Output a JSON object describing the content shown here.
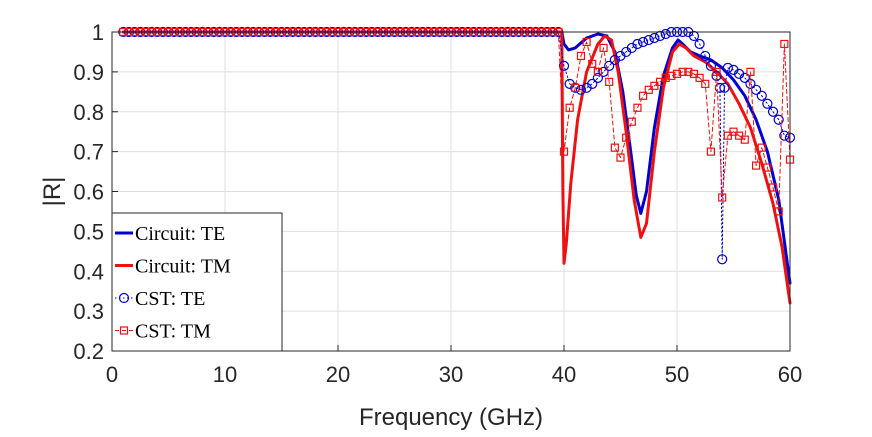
{
  "chart_data": {
    "type": "line",
    "title": "",
    "xlabel": "Frequency (GHz)",
    "ylabel": "|R|",
    "xlim": [
      0,
      60
    ],
    "ylim": [
      0.2,
      1.0
    ],
    "xticks": [
      0,
      10,
      20,
      30,
      40,
      50,
      60
    ],
    "yticks": [
      0.2,
      0.3,
      0.4,
      0.5,
      0.6,
      0.7,
      0.8,
      0.9,
      1
    ],
    "grid": true,
    "legend_position": "bottom-left",
    "colors": {
      "blue": "#0000cc",
      "red": "#ee1111"
    },
    "series": [
      {
        "name": "Circuit: TE",
        "style": "solid",
        "color": "#0000cc",
        "points": [
          [
            1,
            1.0
          ],
          [
            39.8,
            1.0
          ],
          [
            40.0,
            0.97
          ],
          [
            40.4,
            0.955
          ],
          [
            41.0,
            0.96
          ],
          [
            42.0,
            0.985
          ],
          [
            43.0,
            0.995
          ],
          [
            43.8,
            0.99
          ],
          [
            44.5,
            0.95
          ],
          [
            45.2,
            0.85
          ],
          [
            45.9,
            0.7
          ],
          [
            46.4,
            0.59
          ],
          [
            46.8,
            0.545
          ],
          [
            47.3,
            0.6
          ],
          [
            48.0,
            0.76
          ],
          [
            48.8,
            0.89
          ],
          [
            49.6,
            0.96
          ],
          [
            50.1,
            0.98
          ],
          [
            50.5,
            0.97
          ],
          [
            51.2,
            0.95
          ],
          [
            52.0,
            0.94
          ],
          [
            53.0,
            0.93
          ],
          [
            54.0,
            0.91
          ],
          [
            55.0,
            0.88
          ],
          [
            56.0,
            0.84
          ],
          [
            57.0,
            0.78
          ],
          [
            58.0,
            0.7
          ],
          [
            59.0,
            0.58
          ],
          [
            60.0,
            0.37
          ]
        ]
      },
      {
        "name": "Circuit: TM",
        "style": "solid",
        "color": "#ee1111",
        "points": [
          [
            1,
            1.0
          ],
          [
            39.8,
            1.0
          ],
          [
            39.9,
            0.6
          ],
          [
            40.0,
            0.42
          ],
          [
            40.2,
            0.47
          ],
          [
            40.6,
            0.62
          ],
          [
            41.2,
            0.78
          ],
          [
            42.0,
            0.9
          ],
          [
            43.0,
            0.97
          ],
          [
            43.6,
            0.99
          ],
          [
            44.2,
            0.98
          ],
          [
            44.8,
            0.9
          ],
          [
            45.5,
            0.75
          ],
          [
            46.2,
            0.58
          ],
          [
            46.8,
            0.485
          ],
          [
            47.3,
            0.52
          ],
          [
            48.0,
            0.7
          ],
          [
            48.8,
            0.86
          ],
          [
            49.6,
            0.95
          ],
          [
            50.2,
            0.97
          ],
          [
            50.8,
            0.96
          ],
          [
            51.5,
            0.94
          ],
          [
            52.5,
            0.925
          ],
          [
            53.5,
            0.9
          ],
          [
            54.5,
            0.87
          ],
          [
            55.5,
            0.82
          ],
          [
            56.5,
            0.76
          ],
          [
            57.5,
            0.67
          ],
          [
            58.5,
            0.57
          ],
          [
            59.3,
            0.46
          ],
          [
            60.0,
            0.32
          ]
        ]
      },
      {
        "name": "CST: TE",
        "style": "dotted",
        "marker": "circle",
        "color": "#0000cc",
        "points": [
          [
            1,
            1
          ],
          [
            1.5,
            1
          ],
          [
            2,
            1
          ],
          [
            2.5,
            1
          ],
          [
            3,
            1
          ],
          [
            3.5,
            1
          ],
          [
            4,
            1
          ],
          [
            4.5,
            1
          ],
          [
            5,
            1
          ],
          [
            5.5,
            1
          ],
          [
            6,
            1
          ],
          [
            6.5,
            1
          ],
          [
            7,
            1
          ],
          [
            7.5,
            1
          ],
          [
            8,
            1
          ],
          [
            8.5,
            1
          ],
          [
            9,
            1
          ],
          [
            9.5,
            1
          ],
          [
            10,
            1
          ],
          [
            10.5,
            1
          ],
          [
            11,
            1
          ],
          [
            11.5,
            1
          ],
          [
            12,
            1
          ],
          [
            12.5,
            1
          ],
          [
            13,
            1
          ],
          [
            13.5,
            1
          ],
          [
            14,
            1
          ],
          [
            14.5,
            1
          ],
          [
            15,
            1
          ],
          [
            15.5,
            1
          ],
          [
            16,
            1
          ],
          [
            16.5,
            1
          ],
          [
            17,
            1
          ],
          [
            17.5,
            1
          ],
          [
            18,
            1
          ],
          [
            18.5,
            1
          ],
          [
            19,
            1
          ],
          [
            19.5,
            1
          ],
          [
            20,
            1
          ],
          [
            20.5,
            1
          ],
          [
            21,
            1
          ],
          [
            21.5,
            1
          ],
          [
            22,
            1
          ],
          [
            22.5,
            1
          ],
          [
            23,
            1
          ],
          [
            23.5,
            1
          ],
          [
            24,
            1
          ],
          [
            24.5,
            1
          ],
          [
            25,
            1
          ],
          [
            25.5,
            1
          ],
          [
            26,
            1
          ],
          [
            26.5,
            1
          ],
          [
            27,
            1
          ],
          [
            27.5,
            1
          ],
          [
            28,
            1
          ],
          [
            28.5,
            1
          ],
          [
            29,
            1
          ],
          [
            29.5,
            1
          ],
          [
            30,
            1
          ],
          [
            30.5,
            1
          ],
          [
            31,
            1
          ],
          [
            31.5,
            1
          ],
          [
            32,
            1
          ],
          [
            32.5,
            1
          ],
          [
            33,
            1
          ],
          [
            33.5,
            1
          ],
          [
            34,
            1
          ],
          [
            34.5,
            1
          ],
          [
            35,
            1
          ],
          [
            35.5,
            1
          ],
          [
            36,
            1
          ],
          [
            36.5,
            1
          ],
          [
            37,
            1
          ],
          [
            37.5,
            1
          ],
          [
            38,
            1
          ],
          [
            38.5,
            1
          ],
          [
            39,
            1
          ],
          [
            39.5,
            1
          ],
          [
            40.0,
            0.915
          ],
          [
            40.5,
            0.87
          ],
          [
            41.0,
            0.86
          ],
          [
            41.5,
            0.855
          ],
          [
            42.0,
            0.86
          ],
          [
            42.5,
            0.87
          ],
          [
            43.0,
            0.885
          ],
          [
            43.5,
            0.9
          ],
          [
            44.0,
            0.915
          ],
          [
            44.5,
            0.93
          ],
          [
            45.0,
            0.94
          ],
          [
            45.5,
            0.95
          ],
          [
            46.0,
            0.96
          ],
          [
            46.5,
            0.97
          ],
          [
            47.0,
            0.975
          ],
          [
            47.5,
            0.98
          ],
          [
            48.0,
            0.985
          ],
          [
            48.5,
            0.99
          ],
          [
            49.0,
            0.995
          ],
          [
            49.5,
            1.0
          ],
          [
            50.0,
            1.0
          ],
          [
            50.5,
            1.0
          ],
          [
            51.0,
            1.0
          ],
          [
            51.5,
            0.99
          ],
          [
            52.0,
            0.97
          ],
          [
            52.5,
            0.94
          ],
          [
            53.0,
            0.915
          ],
          [
            53.5,
            0.89
          ],
          [
            53.8,
            0.86
          ],
          [
            54.0,
            0.43
          ],
          [
            54.2,
            0.86
          ],
          [
            54.5,
            0.91
          ],
          [
            55.0,
            0.905
          ],
          [
            55.5,
            0.895
          ],
          [
            56.0,
            0.885
          ],
          [
            56.5,
            0.87
          ],
          [
            57.0,
            0.855
          ],
          [
            57.5,
            0.84
          ],
          [
            58.0,
            0.82
          ],
          [
            58.5,
            0.8
          ],
          [
            59.0,
            0.78
          ],
          [
            59.5,
            0.74
          ],
          [
            60.0,
            0.735
          ]
        ]
      },
      {
        "name": "CST: TM",
        "style": "dashed",
        "marker": "square",
        "color": "#ee1111",
        "points": [
          [
            1,
            1
          ],
          [
            1.5,
            1
          ],
          [
            2,
            1
          ],
          [
            2.5,
            1
          ],
          [
            3,
            1
          ],
          [
            3.5,
            1
          ],
          [
            4,
            1
          ],
          [
            4.5,
            1
          ],
          [
            5,
            1
          ],
          [
            5.5,
            1
          ],
          [
            6,
            1
          ],
          [
            6.5,
            1
          ],
          [
            7,
            1
          ],
          [
            7.5,
            1
          ],
          [
            8,
            1
          ],
          [
            8.5,
            1
          ],
          [
            9,
            1
          ],
          [
            9.5,
            1
          ],
          [
            10,
            1
          ],
          [
            10.5,
            1
          ],
          [
            11,
            1
          ],
          [
            11.5,
            1
          ],
          [
            12,
            1
          ],
          [
            12.5,
            1
          ],
          [
            13,
            1
          ],
          [
            13.5,
            1
          ],
          [
            14,
            1
          ],
          [
            14.5,
            1
          ],
          [
            15,
            1
          ],
          [
            15.5,
            1
          ],
          [
            16,
            1
          ],
          [
            16.5,
            1
          ],
          [
            17,
            1
          ],
          [
            17.5,
            1
          ],
          [
            18,
            1
          ],
          [
            18.5,
            1
          ],
          [
            19,
            1
          ],
          [
            19.5,
            1
          ],
          [
            20,
            1
          ],
          [
            20.5,
            1
          ],
          [
            21,
            1
          ],
          [
            21.5,
            1
          ],
          [
            22,
            1
          ],
          [
            22.5,
            1
          ],
          [
            23,
            1
          ],
          [
            23.5,
            1
          ],
          [
            24,
            1
          ],
          [
            24.5,
            1
          ],
          [
            25,
            1
          ],
          [
            25.5,
            1
          ],
          [
            26,
            1
          ],
          [
            26.5,
            1
          ],
          [
            27,
            1
          ],
          [
            27.5,
            1
          ],
          [
            28,
            1
          ],
          [
            28.5,
            1
          ],
          [
            29,
            1
          ],
          [
            29.5,
            1
          ],
          [
            30,
            1
          ],
          [
            30.5,
            1
          ],
          [
            31,
            1
          ],
          [
            31.5,
            1
          ],
          [
            32,
            1
          ],
          [
            32.5,
            1
          ],
          [
            33,
            1
          ],
          [
            33.5,
            1
          ],
          [
            34,
            1
          ],
          [
            34.5,
            1
          ],
          [
            35,
            1
          ],
          [
            35.5,
            1
          ],
          [
            36,
            1
          ],
          [
            36.5,
            1
          ],
          [
            37,
            1
          ],
          [
            37.5,
            1
          ],
          [
            38,
            1
          ],
          [
            38.5,
            1
          ],
          [
            39,
            1
          ],
          [
            39.5,
            1
          ],
          [
            40.0,
            0.7
          ],
          [
            40.5,
            0.81
          ],
          [
            41.0,
            0.86
          ],
          [
            41.5,
            0.94
          ],
          [
            42.0,
            0.975
          ],
          [
            42.5,
            0.92
          ],
          [
            43.0,
            0.9
          ],
          [
            43.5,
            0.96
          ],
          [
            44.0,
            0.875
          ],
          [
            44.5,
            0.71
          ],
          [
            45.0,
            0.685
          ],
          [
            45.5,
            0.735
          ],
          [
            46.0,
            0.775
          ],
          [
            46.5,
            0.81
          ],
          [
            47.0,
            0.84
          ],
          [
            47.5,
            0.855
          ],
          [
            48.0,
            0.865
          ],
          [
            48.5,
            0.875
          ],
          [
            49.0,
            0.885
          ],
          [
            49.5,
            0.89
          ],
          [
            50.0,
            0.895
          ],
          [
            50.5,
            0.9
          ],
          [
            51.0,
            0.9
          ],
          [
            51.5,
            0.895
          ],
          [
            52.0,
            0.885
          ],
          [
            52.5,
            0.87
          ],
          [
            53.0,
            0.7
          ],
          [
            53.5,
            0.9
          ],
          [
            54.0,
            0.585
          ],
          [
            54.5,
            0.74
          ],
          [
            55.0,
            0.75
          ],
          [
            55.5,
            0.74
          ],
          [
            56.0,
            0.73
          ],
          [
            56.5,
            0.9
          ],
          [
            57.0,
            0.665
          ],
          [
            57.5,
            0.71
          ],
          [
            58.0,
            0.66
          ],
          [
            58.5,
            0.61
          ],
          [
            59.0,
            0.55
          ],
          [
            59.5,
            0.97
          ],
          [
            60.0,
            0.68
          ]
        ]
      }
    ]
  }
}
